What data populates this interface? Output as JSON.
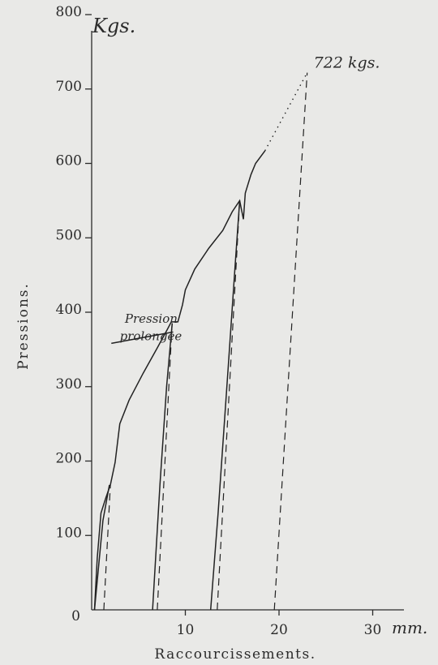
{
  "chart_data": {
    "type": "line",
    "y_unit_label": "Kgs.",
    "ylabel": "Pressions.",
    "xlabel": "Raccourcissements.",
    "x_unit_label": "mm.",
    "x_ticks": [
      "0",
      "10",
      "20",
      "30"
    ],
    "y_ticks": [
      "100",
      "200",
      "300",
      "400",
      "500",
      "600",
      "700",
      "800"
    ],
    "xlim": [
      0,
      36
    ],
    "ylim": [
      0,
      800
    ],
    "grid": false,
    "annotations": [
      {
        "text": "722 kgs.",
        "x": 23.0,
        "y": 722
      },
      {
        "text": "Pression",
        "x": 2.5,
        "y": 390
      },
      {
        "text": "prolongee",
        "x": 2.3,
        "y": 368
      }
    ],
    "series": [
      {
        "style": "solid",
        "points": [
          [
            0.3,
            0
          ],
          [
            0.6,
            70
          ],
          [
            1.0,
            130
          ],
          [
            1.5,
            150
          ],
          [
            2.0,
            168
          ],
          [
            2.5,
            198
          ],
          [
            3.0,
            250
          ],
          [
            4.0,
            282
          ],
          [
            5.5,
            318
          ],
          [
            7.0,
            352
          ],
          [
            8.0,
            375
          ],
          [
            8.5,
            387
          ],
          [
            9.2,
            387
          ],
          [
            9.7,
            410
          ],
          [
            10.0,
            430
          ],
          [
            11.0,
            458
          ],
          [
            12.5,
            486
          ],
          [
            14.0,
            510
          ],
          [
            15.0,
            535
          ],
          [
            15.8,
            550
          ],
          [
            16.2,
            525
          ],
          [
            16.4,
            560
          ],
          [
            17.0,
            585
          ],
          [
            17.5,
            600
          ],
          [
            18.5,
            617
          ]
        ]
      },
      {
        "style": "solid",
        "points": [
          [
            0.3,
            0
          ],
          [
            1.2,
            120
          ],
          [
            1.9,
            168
          ]
        ]
      },
      {
        "style": "solid",
        "points": [
          [
            6.5,
            0
          ],
          [
            7.3,
            170
          ],
          [
            8.0,
            300
          ],
          [
            8.6,
            385
          ]
        ]
      },
      {
        "style": "solid",
        "points": [
          [
            12.7,
            0
          ],
          [
            13.5,
            130
          ],
          [
            14.6,
            330
          ],
          [
            15.3,
            460
          ],
          [
            15.8,
            550
          ]
        ]
      },
      {
        "style": "dashed",
        "points": [
          [
            1.3,
            0
          ],
          [
            2.0,
            168
          ]
        ]
      },
      {
        "style": "dashed",
        "points": [
          [
            7.0,
            0
          ],
          [
            8.6,
            387
          ]
        ]
      },
      {
        "style": "dashed",
        "points": [
          [
            13.4,
            0
          ],
          [
            15.8,
            550
          ]
        ]
      },
      {
        "style": "dashed",
        "points": [
          [
            19.5,
            0
          ],
          [
            23.0,
            722
          ]
        ]
      },
      {
        "style": "dotted",
        "points": [
          [
            18.5,
            617
          ],
          [
            23.0,
            722
          ]
        ]
      }
    ]
  }
}
